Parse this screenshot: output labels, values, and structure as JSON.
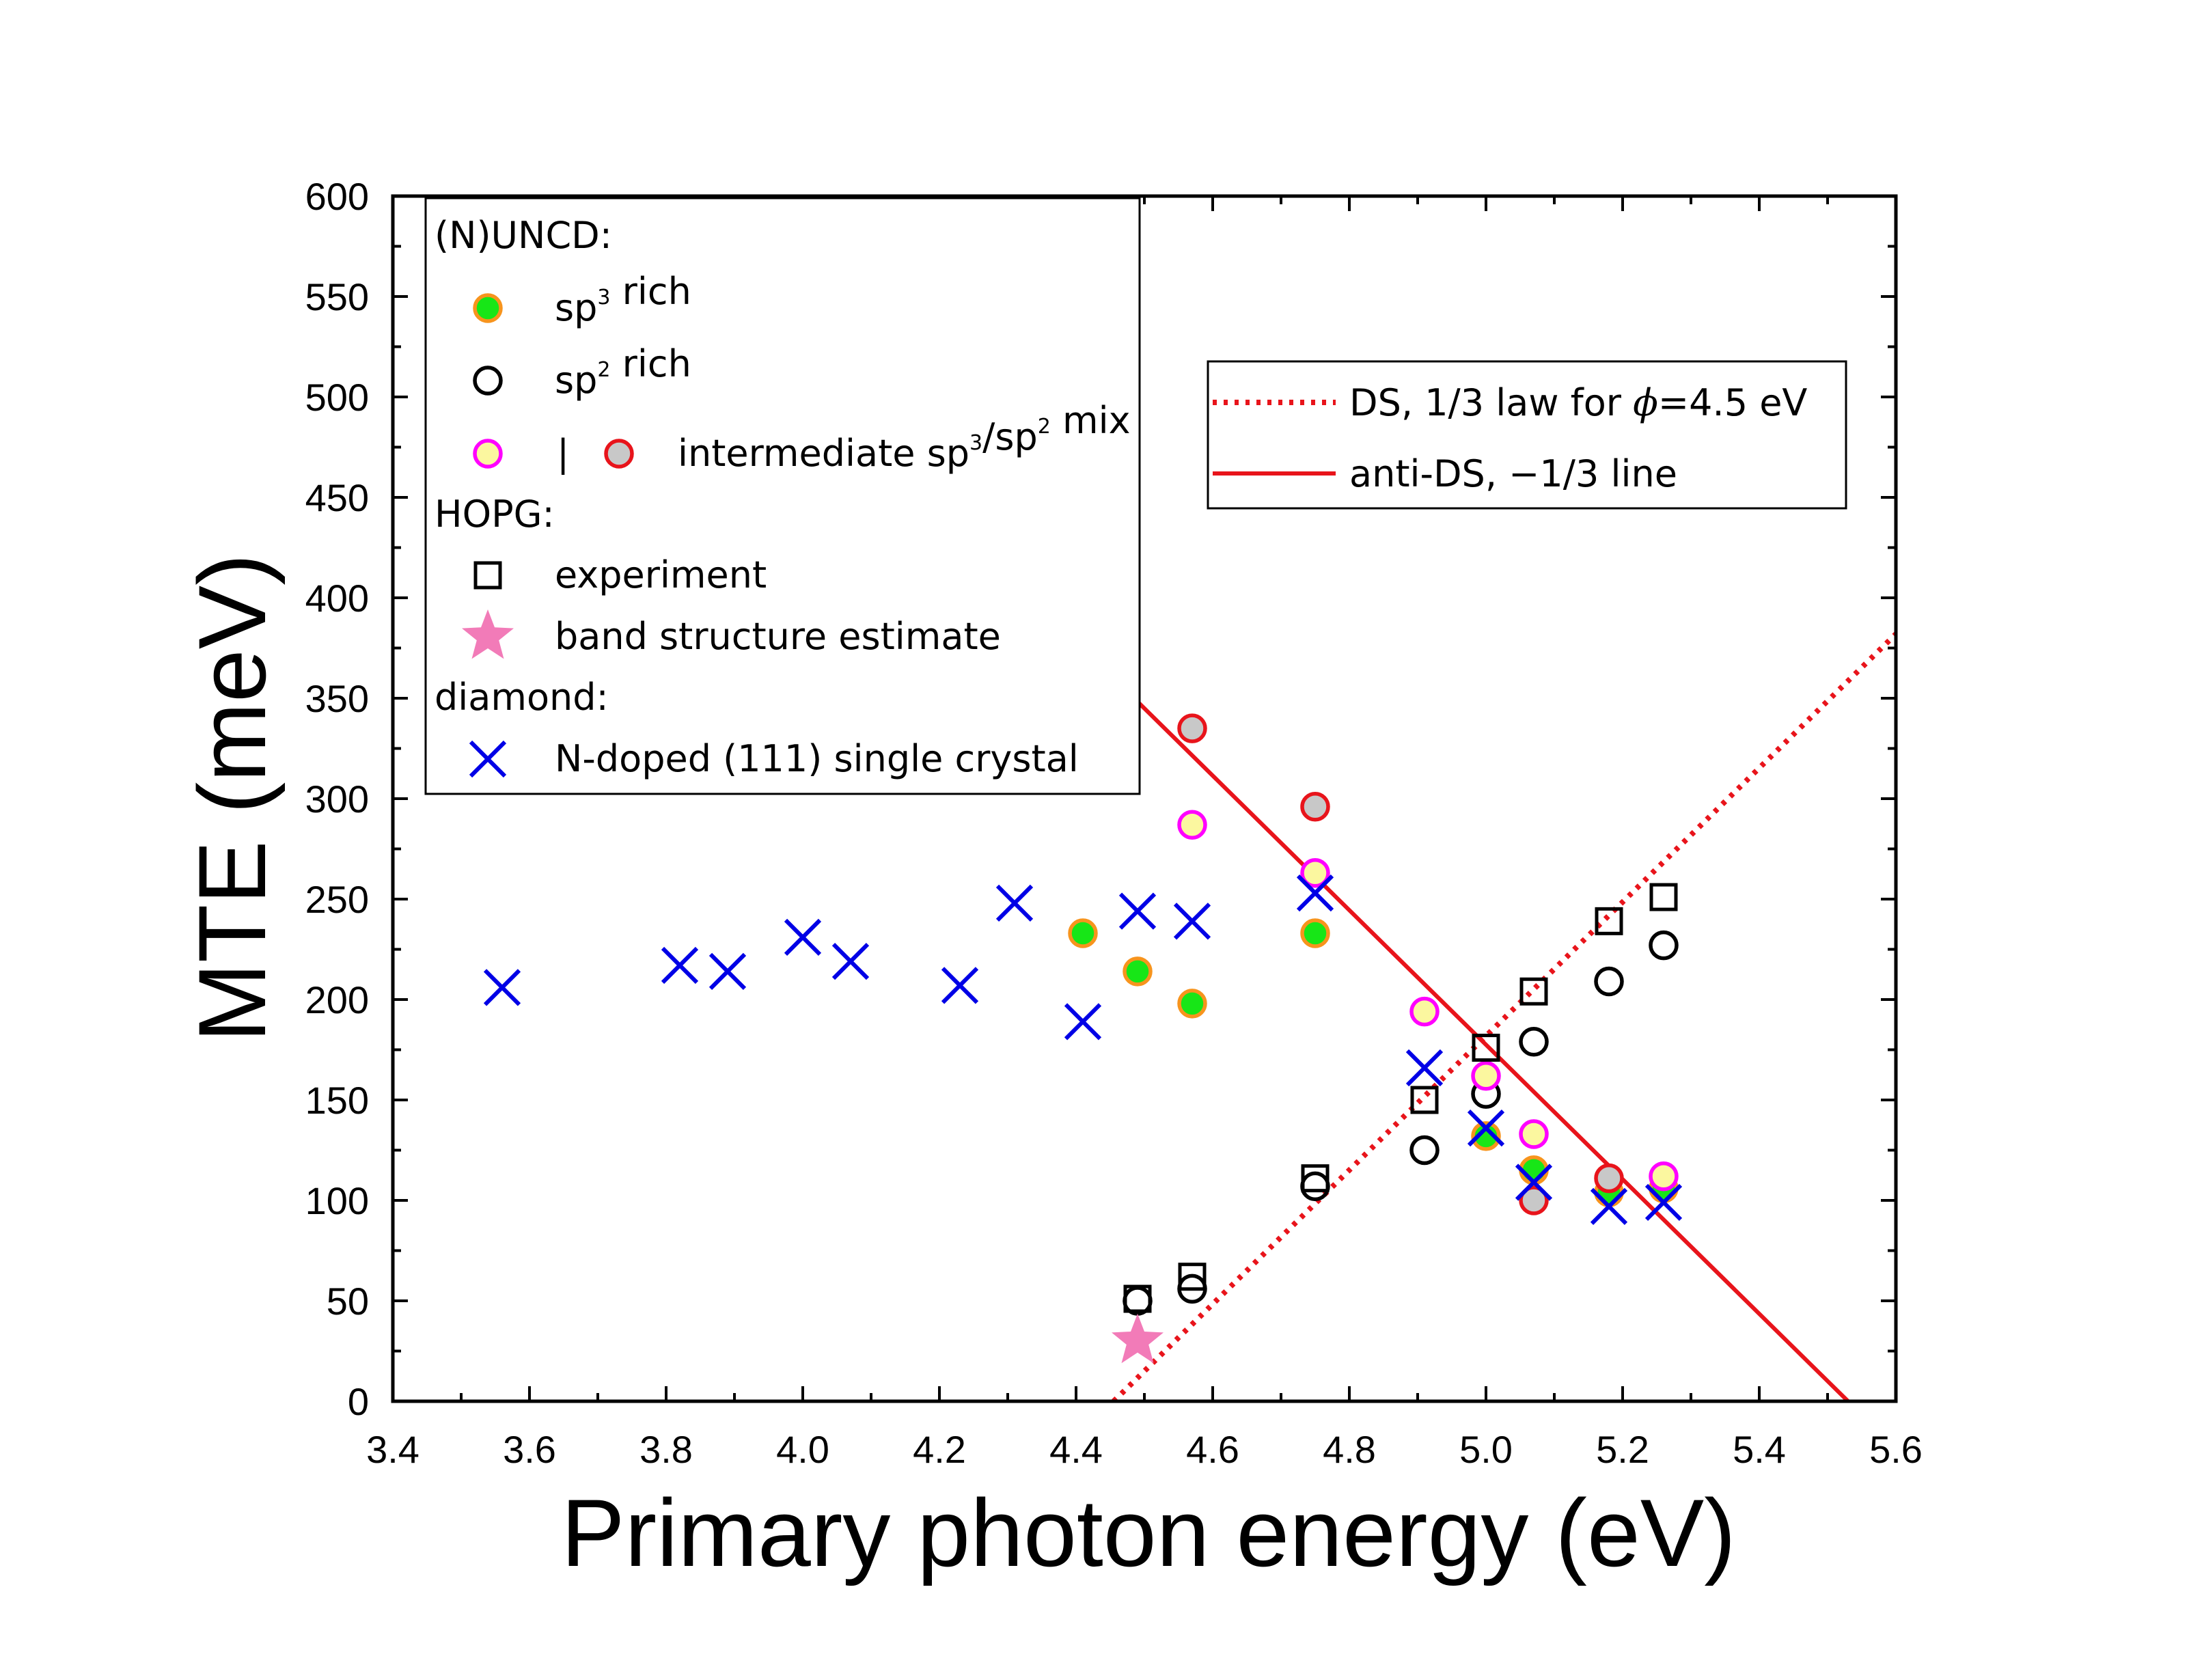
{
  "chart_data": {
    "type": "scatter",
    "xlabel": "Primary photon energy (eV)",
    "ylabel": "MTE (meV)",
    "xlim": [
      3.4,
      5.6
    ],
    "ylim": [
      0,
      600
    ],
    "xticks": [
      "3.4",
      "3.6",
      "3.8",
      "4.0",
      "4.2",
      "4.4",
      "4.6",
      "4.8",
      "5.0",
      "5.2",
      "5.4",
      "5.6"
    ],
    "yticks": [
      "0",
      "50",
      "100",
      "150",
      "200",
      "250",
      "300",
      "350",
      "400",
      "450",
      "500",
      "550",
      "600"
    ],
    "grid": false,
    "legend_main": {
      "placement": "top-left",
      "groups": [
        {
          "heading": "(N)UNCD:",
          "entries": [
            {
              "label_main": "sp",
              "sup": "3",
              "label_rest": " rich",
              "marker": "filled-circle-green-orange"
            },
            {
              "label_main": "sp",
              "sup": "2",
              "label_rest": " rich",
              "marker": "open-circle-black"
            },
            {
              "label_pre": "|",
              "label_main": "intermediate sp",
              "sup": "3",
              "label_mid": "/sp",
              "sup2": "2",
              "label_rest": " mix",
              "marker": "yellow-magenta-and-grey-red"
            }
          ]
        },
        {
          "heading": "HOPG:",
          "entries": [
            {
              "label_main": "experiment",
              "marker": "open-square-black"
            },
            {
              "label_main": "band structure estimate",
              "marker": "star-pink"
            }
          ]
        },
        {
          "heading": "diamond:",
          "entries": [
            {
              "label_main": "N-doped (111) single crystal",
              "marker": "cross-blue"
            }
          ]
        }
      ]
    },
    "legend_lines": {
      "placement": "top-right",
      "entries": [
        {
          "label_pre": "DS, 1/3 law for ",
          "symbol": "ϕ",
          "label_post": "=4.5 eV",
          "style": "dotted",
          "color": "#e8141b"
        },
        {
          "label_pre": "anti-DS, −1/3 line",
          "style": "solid",
          "color": "#e8141b"
        }
      ]
    },
    "lines": [
      {
        "name": "DS, 1/3 law for ϕ=4.5 eV",
        "style": "dotted",
        "color": "#e8141b",
        "x": [
          4.455,
          5.6
        ],
        "y": [
          0,
          382
        ]
      },
      {
        "name": "anti-DS, −1/3 line",
        "style": "solid",
        "color": "#e8141b",
        "x": [
          4.47,
          5.53
        ],
        "y": [
          355,
          0
        ]
      }
    ],
    "series": [
      {
        "name": "sp3 rich",
        "marker": "filled-circle",
        "fill": "#17e617",
        "stroke": "#f7941d",
        "x": [
          4.41,
          4.49,
          4.57,
          4.75,
          5.0,
          5.07,
          5.18,
          5.26
        ],
        "y": [
          233,
          214,
          198,
          233,
          132,
          115,
          104,
          106
        ]
      },
      {
        "name": "sp2 rich",
        "marker": "open-circle",
        "fill": "none",
        "stroke": "#000000",
        "x": [
          4.49,
          4.57,
          4.75,
          4.91,
          5.0,
          5.07,
          5.18,
          5.26
        ],
        "y": [
          50,
          56,
          107,
          125,
          153,
          179,
          209,
          227
        ]
      },
      {
        "name": "intermediate sp3/sp2 mix (yellow)",
        "marker": "filled-circle",
        "fill": "#fbf79f",
        "stroke": "#ff00ff",
        "x": [
          4.57,
          4.75,
          4.91,
          5.0,
          5.07,
          5.26
        ],
        "y": [
          287,
          263,
          194,
          162,
          133,
          112
        ]
      },
      {
        "name": "intermediate sp3/sp2 mix (grey)",
        "marker": "filled-circle",
        "fill": "#c8c8c8",
        "stroke": "#e8141b",
        "x": [
          4.57,
          4.75,
          5.07,
          5.18
        ],
        "y": [
          335,
          296,
          100,
          111
        ]
      },
      {
        "name": "experiment",
        "marker": "open-square",
        "fill": "none",
        "stroke": "#000000",
        "x": [
          4.49,
          4.57,
          4.75,
          4.91,
          5.0,
          5.07,
          5.18,
          5.26
        ],
        "y": [
          51,
          62,
          111,
          150,
          176,
          204,
          239,
          251
        ]
      },
      {
        "name": "band structure estimate",
        "marker": "star",
        "fill": "#f27bb8",
        "stroke": "none",
        "x": [
          4.49
        ],
        "y": [
          30
        ]
      },
      {
        "name": "N-doped (111) single crystal",
        "marker": "cross",
        "fill": "none",
        "stroke": "#0000e6",
        "x": [
          3.56,
          3.82,
          3.89,
          4.0,
          4.07,
          4.23,
          4.31,
          4.41,
          4.49,
          4.57,
          4.75,
          4.91,
          5.0,
          5.07,
          5.18,
          5.26
        ],
        "y": [
          206,
          217,
          214,
          231,
          219,
          207,
          248,
          189,
          244,
          239,
          253,
          166,
          136,
          109,
          97,
          99
        ]
      }
    ]
  }
}
